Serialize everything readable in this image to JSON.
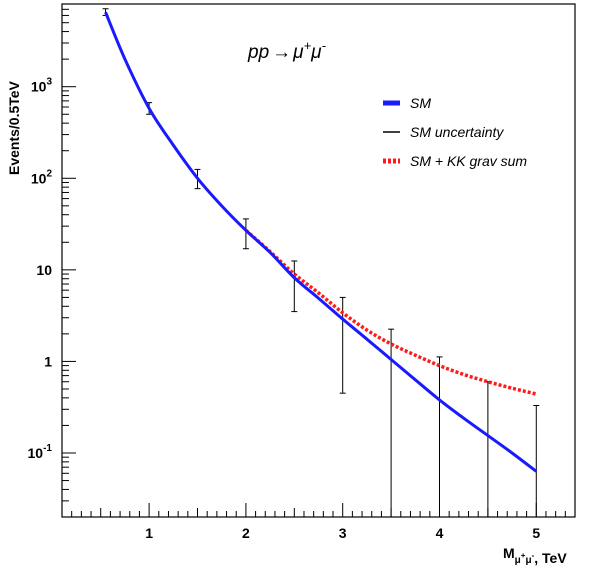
{
  "chart_data": {
    "type": "line",
    "title": "pp → μ⁺μ⁻",
    "title_parts": {
      "lhs": "pp",
      "arrow": "→",
      "mu1": "μ",
      "sup1": "+",
      "mu2": "μ",
      "sup2": "-"
    },
    "ylabel": "Events/0.5TeV",
    "xlabel": "M_{μ⁺μ⁻}, TeV",
    "xlabel_parts": {
      "M": "M",
      "sub": "μ",
      "sub_sup1": "+",
      "sub_mu2": "μ",
      "sub_sup2": "-",
      "tail": ", TeV"
    },
    "y_scale": "log",
    "xlim": [
      0.1,
      5.4
    ],
    "ylim": [
      0.02,
      8000
    ],
    "x_ticks": [
      1,
      2,
      3,
      4,
      5
    ],
    "x_tick_labels": [
      "1",
      "2",
      "3",
      "4",
      "5"
    ],
    "y_ticks": [
      {
        "value": 0.1,
        "base": "10",
        "exp": "-1"
      },
      {
        "value": 1,
        "base": "1",
        "exp": ""
      },
      {
        "value": 10,
        "base": "10",
        "exp": ""
      },
      {
        "value": 100,
        "base": "10",
        "exp": "2"
      },
      {
        "value": 1000,
        "base": "10",
        "exp": "3"
      }
    ],
    "grid": false,
    "legend_position": "top-right",
    "series": [
      {
        "name": "SM",
        "color": "#1a1aff",
        "style": "solid",
        "x": [
          0.55,
          0.75,
          1.0,
          1.25,
          1.5,
          1.75,
          2.0,
          2.25,
          2.5,
          2.75,
          3.0,
          3.25,
          3.5,
          3.75,
          4.0,
          4.25,
          4.5,
          4.75,
          5.0
        ],
        "y": [
          6500,
          2000,
          580,
          230,
          100,
          50,
          27,
          15.5,
          8.2,
          4.9,
          2.9,
          1.75,
          1.05,
          0.63,
          0.38,
          0.24,
          0.155,
          0.1,
          0.063
        ]
      },
      {
        "name": "SM + KK grav sum",
        "color": "#ff1a1a",
        "style": "dotted",
        "x": [
          2.0,
          2.25,
          2.5,
          2.75,
          3.0,
          3.25,
          3.5,
          3.75,
          4.0,
          4.25,
          4.5,
          4.75,
          5.0
        ],
        "y": [
          27,
          15.8,
          9.0,
          5.6,
          3.4,
          2.2,
          1.55,
          1.17,
          0.9,
          0.72,
          0.6,
          0.51,
          0.44
        ]
      }
    ],
    "error_bars": {
      "name": "SM uncertainty",
      "color": "#000000",
      "points": [
        {
          "x": 0.55,
          "low": 6000,
          "high": 7100
        },
        {
          "x": 1.0,
          "low": 500,
          "high": 670
        },
        {
          "x": 1.5,
          "low": 77,
          "high": 125
        },
        {
          "x": 2.0,
          "low": 17,
          "high": 36
        },
        {
          "x": 2.5,
          "low": 3.5,
          "high": 12.5
        },
        {
          "x": 3.0,
          "low": 0.45,
          "high": 5.0
        },
        {
          "x": 3.5,
          "low": 0.02,
          "high": 2.25
        },
        {
          "x": 4.0,
          "low": 0.02,
          "high": 1.12
        },
        {
          "x": 4.5,
          "low": 0.02,
          "high": 0.6
        },
        {
          "x": 5.0,
          "low": 0.02,
          "high": 0.33
        }
      ]
    }
  }
}
